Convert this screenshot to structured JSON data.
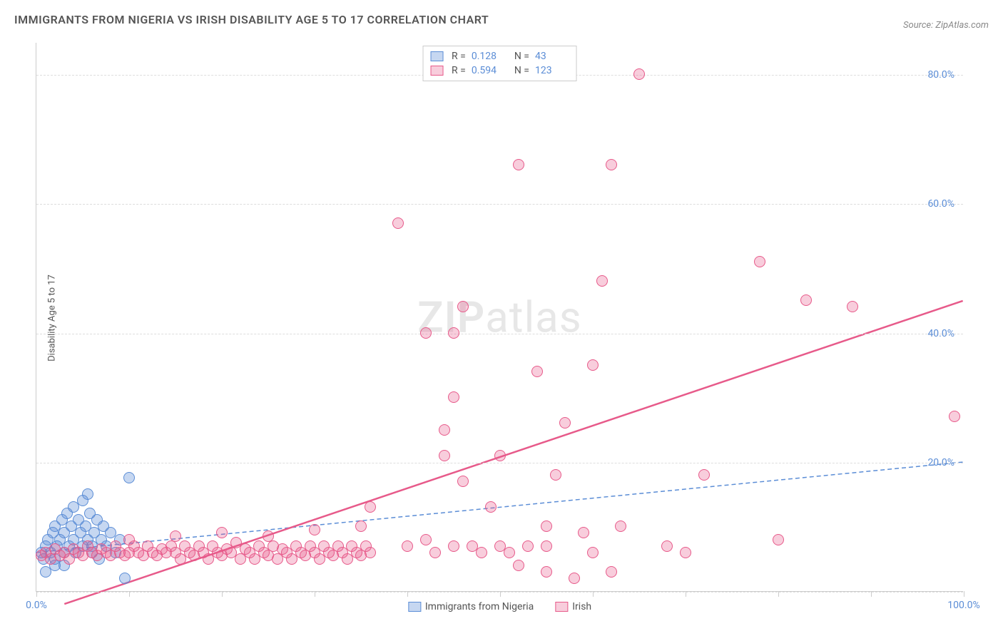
{
  "title": "IMMIGRANTS FROM NIGERIA VS IRISH DISABILITY AGE 5 TO 17 CORRELATION CHART",
  "source": "Source: ZipAtlas.com",
  "watermark": {
    "bold": "ZIP",
    "rest": "atlas"
  },
  "y_axis_label": "Disability Age 5 to 17",
  "chart": {
    "type": "scatter",
    "background_color": "#ffffff",
    "grid_color": "#dddddd",
    "axis_color": "#cccccc",
    "xlim": [
      0,
      100
    ],
    "ylim": [
      0,
      85
    ],
    "x_ticks": [
      0,
      10,
      20,
      30,
      40,
      50,
      60,
      70,
      80,
      90,
      100
    ],
    "x_tick_labels": {
      "0": "0.0%",
      "100": "100.0%"
    },
    "y_ticks": [
      20,
      40,
      60,
      80
    ],
    "y_tick_labels": {
      "20": "20.0%",
      "40": "40.0%",
      "60": "60.0%",
      "80": "80.0%"
    },
    "gridlines_y": [
      0,
      20,
      40,
      60,
      80
    ],
    "point_radius": 8,
    "point_border_width": 1,
    "point_fill_opacity": 0.35,
    "tick_label_color": "#5b8dd6",
    "tick_label_fontsize": 14,
    "title_fontsize": 16,
    "title_color": "#555555"
  },
  "series": [
    {
      "name": "Immigrants from Nigeria",
      "color": "#5b8dd6",
      "fill": "rgba(91,141,214,0.35)",
      "R": "0.128",
      "N": "43",
      "trendline": {
        "x1": 0,
        "y1": 6,
        "x2": 100,
        "y2": 20,
        "dash": "6,4",
        "width": 1.5
      },
      "points": [
        [
          0.5,
          6
        ],
        [
          0.8,
          5
        ],
        [
          1,
          7
        ],
        [
          1.2,
          8
        ],
        [
          1.5,
          6
        ],
        [
          1.8,
          9
        ],
        [
          2,
          10
        ],
        [
          2,
          5
        ],
        [
          2.2,
          7
        ],
        [
          2.5,
          8
        ],
        [
          2.8,
          11
        ],
        [
          3,
          6
        ],
        [
          3,
          9
        ],
        [
          3.3,
          12
        ],
        [
          3.5,
          7
        ],
        [
          3.8,
          10
        ],
        [
          4,
          8
        ],
        [
          4,
          13
        ],
        [
          4.2,
          6
        ],
        [
          4.5,
          11
        ],
        [
          4.8,
          9
        ],
        [
          5,
          7
        ],
        [
          5,
          14
        ],
        [
          5.3,
          10
        ],
        [
          5.5,
          8
        ],
        [
          5.8,
          12
        ],
        [
          6,
          7
        ],
        [
          6,
          6
        ],
        [
          6.2,
          9
        ],
        [
          6.5,
          11
        ],
        [
          6.8,
          5
        ],
        [
          7,
          8
        ],
        [
          7.2,
          10
        ],
        [
          7.5,
          7
        ],
        [
          8,
          9
        ],
        [
          8.5,
          6
        ],
        [
          9,
          8
        ],
        [
          5.5,
          15
        ],
        [
          10,
          17.5
        ],
        [
          3,
          4
        ],
        [
          9.5,
          2
        ],
        [
          2,
          4
        ],
        [
          1,
          3
        ]
      ]
    },
    {
      "name": "Irish",
      "color": "#e75a8a",
      "fill": "rgba(231,90,138,0.30)",
      "R": "0.594",
      "N": "123",
      "trendline": {
        "x1": 3,
        "y1": -2,
        "x2": 100,
        "y2": 45,
        "dash": "none",
        "width": 2.5
      },
      "points": [
        [
          0.5,
          5.5
        ],
        [
          1,
          6
        ],
        [
          1.5,
          5
        ],
        [
          2,
          6.5
        ],
        [
          2.5,
          5.5
        ],
        [
          3,
          6
        ],
        [
          3.5,
          5
        ],
        [
          4,
          6.5
        ],
        [
          4.5,
          6
        ],
        [
          5,
          5.5
        ],
        [
          5.5,
          7
        ],
        [
          6,
          6
        ],
        [
          6.5,
          5.5
        ],
        [
          7,
          6.5
        ],
        [
          7.5,
          6
        ],
        [
          8,
          5.5
        ],
        [
          8.5,
          7
        ],
        [
          9,
          6
        ],
        [
          9.5,
          5.5
        ],
        [
          10,
          6
        ],
        [
          10.5,
          7
        ],
        [
          11,
          6
        ],
        [
          11.5,
          5.5
        ],
        [
          12,
          7
        ],
        [
          12.5,
          6
        ],
        [
          13,
          5.5
        ],
        [
          13.5,
          6.5
        ],
        [
          14,
          6
        ],
        [
          14.5,
          7
        ],
        [
          15,
          6
        ],
        [
          15.5,
          5
        ],
        [
          16,
          7
        ],
        [
          16.5,
          6
        ],
        [
          17,
          5.5
        ],
        [
          17.5,
          7
        ],
        [
          18,
          6
        ],
        [
          18.5,
          5
        ],
        [
          19,
          7
        ],
        [
          19.5,
          6
        ],
        [
          20,
          5.5
        ],
        [
          20.5,
          6.5
        ],
        [
          21,
          6
        ],
        [
          21.5,
          7.5
        ],
        [
          22,
          5
        ],
        [
          22.5,
          6.5
        ],
        [
          23,
          6
        ],
        [
          23.5,
          5
        ],
        [
          24,
          7
        ],
        [
          24.5,
          6
        ],
        [
          25,
          5.5
        ],
        [
          25.5,
          7
        ],
        [
          26,
          5
        ],
        [
          26.5,
          6.5
        ],
        [
          27,
          6
        ],
        [
          27.5,
          5
        ],
        [
          28,
          7
        ],
        [
          28.5,
          6
        ],
        [
          29,
          5.5
        ],
        [
          29.5,
          7
        ],
        [
          30,
          6
        ],
        [
          30.5,
          5
        ],
        [
          31,
          7
        ],
        [
          31.5,
          6
        ],
        [
          32,
          5.5
        ],
        [
          32.5,
          7
        ],
        [
          33,
          6
        ],
        [
          33.5,
          5
        ],
        [
          34,
          7
        ],
        [
          34.5,
          6
        ],
        [
          35,
          5.5
        ],
        [
          35.5,
          7
        ],
        [
          36,
          6
        ],
        [
          10,
          8
        ],
        [
          15,
          8.5
        ],
        [
          20,
          9
        ],
        [
          25,
          8.5
        ],
        [
          30,
          9.5
        ],
        [
          35,
          10
        ],
        [
          36,
          13
        ],
        [
          39,
          57
        ],
        [
          40,
          7
        ],
        [
          42,
          40
        ],
        [
          43,
          6
        ],
        [
          44,
          21
        ],
        [
          44,
          25
        ],
        [
          45,
          7
        ],
        [
          45,
          30
        ],
        [
          46,
          17
        ],
        [
          46,
          44
        ],
        [
          48,
          6
        ],
        [
          49,
          13
        ],
        [
          50,
          21
        ],
        [
          51,
          6
        ],
        [
          52,
          4
        ],
        [
          52,
          66
        ],
        [
          53,
          7
        ],
        [
          54,
          34
        ],
        [
          55,
          3
        ],
        [
          55,
          10
        ],
        [
          56,
          18
        ],
        [
          57,
          26
        ],
        [
          58,
          2
        ],
        [
          59,
          9
        ],
        [
          60,
          35
        ],
        [
          60,
          6
        ],
        [
          61,
          48
        ],
        [
          62,
          3
        ],
        [
          62,
          66
        ],
        [
          63,
          10
        ],
        [
          65,
          80
        ],
        [
          68,
          7
        ],
        [
          70,
          6
        ],
        [
          72,
          18
        ],
        [
          78,
          51
        ],
        [
          80,
          8
        ],
        [
          83,
          45
        ],
        [
          88,
          44
        ],
        [
          99,
          27
        ],
        [
          45,
          40
        ],
        [
          50,
          7
        ],
        [
          42,
          8
        ],
        [
          47,
          7
        ],
        [
          55,
          7
        ]
      ]
    }
  ],
  "legend_top": {
    "r_label": "R =",
    "n_label": "N ="
  },
  "legend_bottom": [
    {
      "label": "Immigrants from Nigeria",
      "series_idx": 0
    },
    {
      "label": "Irish",
      "series_idx": 1
    }
  ]
}
